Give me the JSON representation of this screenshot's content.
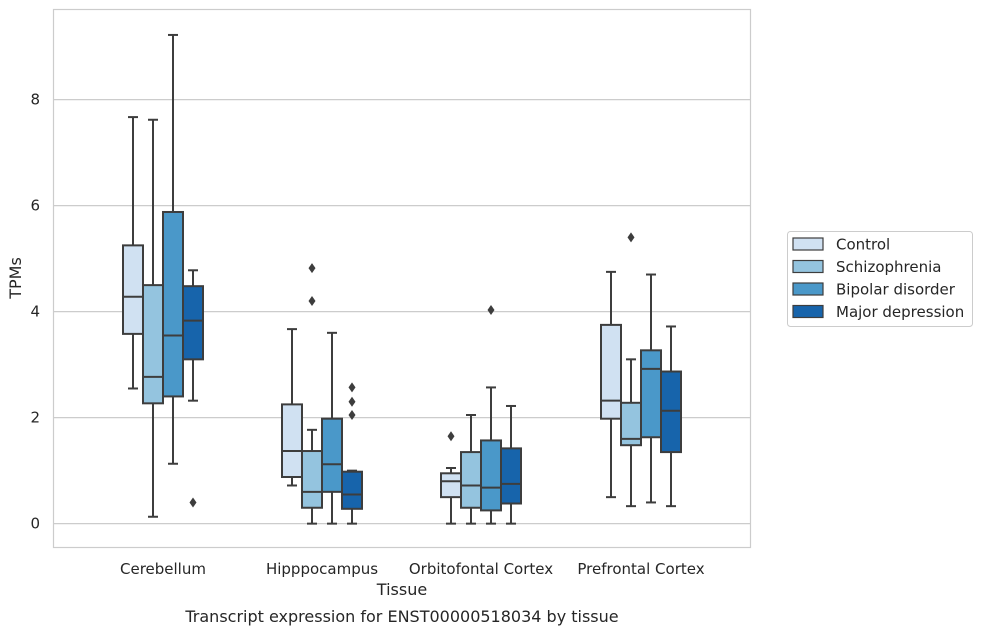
{
  "chart_data": {
    "type": "box",
    "title": "",
    "caption": "Transcript expression for ENST00000518034 by tissue",
    "xlabel": "Tissue",
    "ylabel": "TPMs",
    "ylim": [
      -0.45,
      9.7
    ],
    "yticks": [
      0,
      2,
      4,
      6,
      8
    ],
    "grid": "horizontal",
    "legend_position": "right",
    "categories": [
      "Cerebellum",
      "Hipppocampus",
      "Orbitofontal Cortex",
      "Prefrontal Cortex"
    ],
    "series": [
      {
        "name": "Control",
        "color": "#d0e1f2",
        "boxes": [
          {
            "whisker_low": 2.55,
            "q1": 3.58,
            "median": 4.28,
            "q3": 5.25,
            "whisker_high": 7.67,
            "outliers": []
          },
          {
            "whisker_low": 0.72,
            "q1": 0.88,
            "median": 1.37,
            "q3": 2.25,
            "whisker_high": 3.67,
            "outliers": []
          },
          {
            "whisker_low": 0.0,
            "q1": 0.5,
            "median": 0.8,
            "q3": 0.95,
            "whisker_high": 1.05,
            "outliers": [
              1.65
            ]
          },
          {
            "whisker_low": 0.5,
            "q1": 1.98,
            "median": 2.32,
            "q3": 3.75,
            "whisker_high": 4.75,
            "outliers": []
          }
        ]
      },
      {
        "name": "Schizophrenia",
        "color": "#94c4df",
        "boxes": [
          {
            "whisker_low": 0.13,
            "q1": 2.27,
            "median": 2.77,
            "q3": 4.5,
            "whisker_high": 7.62,
            "outliers": []
          },
          {
            "whisker_low": 0.0,
            "q1": 0.3,
            "median": 0.6,
            "q3": 1.37,
            "whisker_high": 1.77,
            "outliers": [
              4.2,
              4.82
            ]
          },
          {
            "whisker_low": 0.0,
            "q1": 0.3,
            "median": 0.72,
            "q3": 1.35,
            "whisker_high": 2.05,
            "outliers": []
          },
          {
            "whisker_low": 0.33,
            "q1": 1.48,
            "median": 1.6,
            "q3": 2.28,
            "whisker_high": 3.1,
            "outliers": [
              5.4
            ]
          }
        ]
      },
      {
        "name": "Bipolar disorder",
        "color": "#4a98c9",
        "boxes": [
          {
            "whisker_low": 1.13,
            "q1": 2.4,
            "median": 3.55,
            "q3": 5.88,
            "whisker_high": 9.22,
            "outliers": []
          },
          {
            "whisker_low": 0.0,
            "q1": 0.6,
            "median": 1.12,
            "q3": 1.98,
            "whisker_high": 3.6,
            "outliers": []
          },
          {
            "whisker_low": 0.0,
            "q1": 0.25,
            "median": 0.68,
            "q3": 1.57,
            "whisker_high": 2.57,
            "outliers": [
              4.03
            ]
          },
          {
            "whisker_low": 0.4,
            "q1": 1.63,
            "median": 2.92,
            "q3": 3.27,
            "whisker_high": 4.7,
            "outliers": []
          }
        ]
      },
      {
        "name": "Major depression",
        "color": "#1764ab",
        "boxes": [
          {
            "whisker_low": 2.32,
            "q1": 3.1,
            "median": 3.83,
            "q3": 4.48,
            "whisker_high": 4.78,
            "outliers": [
              0.4
            ]
          },
          {
            "whisker_low": 0.0,
            "q1": 0.28,
            "median": 0.55,
            "q3": 0.98,
            "whisker_high": 1.0,
            "outliers": [
              2.05,
              2.3,
              2.57
            ]
          },
          {
            "whisker_low": 0.0,
            "q1": 0.38,
            "median": 0.75,
            "q3": 1.42,
            "whisker_high": 2.22,
            "outliers": []
          },
          {
            "whisker_low": 0.33,
            "q1": 1.35,
            "median": 2.13,
            "q3": 2.87,
            "whisker_high": 3.72,
            "outliers": []
          }
        ]
      }
    ]
  }
}
